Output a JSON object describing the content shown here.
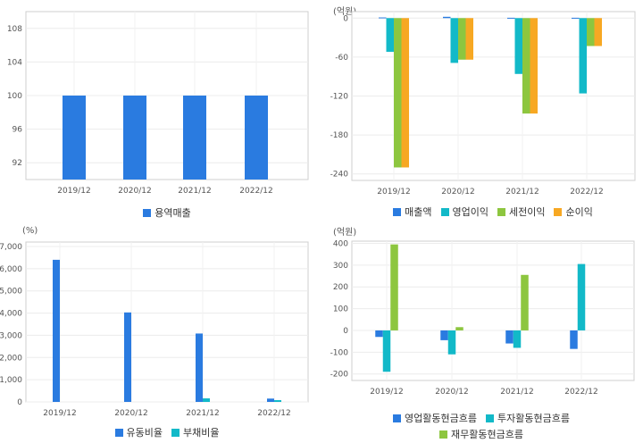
{
  "chart_data": [
    {
      "type": "bar",
      "unit": "",
      "categories": [
        "2019/12",
        "2020/12",
        "2021/12",
        "2022/12"
      ],
      "ylim": [
        90,
        110
      ],
      "yticks": [
        92,
        96,
        100,
        104,
        108
      ],
      "tick_labels": [
        "92",
        "96",
        "100",
        "104",
        "108"
      ],
      "grid": true,
      "legend": "bottom",
      "series": [
        {
          "name": "용역매출",
          "color": "#2a7be0",
          "values": [
            100,
            100,
            100,
            100
          ]
        }
      ]
    },
    {
      "type": "bar",
      "unit": "(억원)",
      "categories": [
        "2019/12",
        "2020/12",
        "2021/12",
        "2022/12"
      ],
      "ylim": [
        -250,
        10
      ],
      "yticks": [
        -240,
        -180,
        -120,
        -60,
        0
      ],
      "tick_labels": [
        "-240",
        "-180",
        "-120",
        "-60",
        "0"
      ],
      "grid": true,
      "legend": "bottom",
      "series": [
        {
          "name": "매출액",
          "color": "#2a7be0",
          "values": [
            1,
            2,
            0.5,
            0.5
          ]
        },
        {
          "name": "영업이익",
          "color": "#12b9c8",
          "values": [
            -52,
            -69,
            -86,
            -116
          ]
        },
        {
          "name": "세전이익",
          "color": "#8dc63f",
          "values": [
            -230,
            -64,
            -147,
            -43
          ]
        },
        {
          "name": "순이익",
          "color": "#f7a823",
          "values": [
            -230,
            -64,
            -147,
            -43
          ]
        }
      ]
    },
    {
      "type": "bar",
      "unit": "(%)",
      "categories": [
        "2019/12",
        "2020/12",
        "2021/12",
        "2022/12"
      ],
      "ylim": [
        0,
        7200
      ],
      "yticks": [
        0,
        1000,
        2000,
        3000,
        4000,
        5000,
        6000,
        7000
      ],
      "tick_labels": [
        "0",
        "1,000",
        "2,000",
        "3,000",
        "4,000",
        "5,000",
        "6,000",
        "7,000"
      ],
      "grid": true,
      "legend": "bottom",
      "series": [
        {
          "name": "유동비율",
          "color": "#2a7be0",
          "values": [
            6400,
            4030,
            3080,
            150
          ]
        },
        {
          "name": "부채비율",
          "color": "#12b9c8",
          "values": [
            0,
            0,
            160,
            80
          ]
        }
      ]
    },
    {
      "type": "bar",
      "unit": "(억원)",
      "categories": [
        "2019/12",
        "2020/12",
        "2021/12",
        "2022/12"
      ],
      "ylim": [
        -230,
        410
      ],
      "yticks": [
        -200,
        -100,
        0,
        100,
        200,
        300,
        400
      ],
      "tick_labels": [
        "-200",
        "-100",
        "0",
        "100",
        "200",
        "300",
        "400"
      ],
      "grid": true,
      "legend": "bottom",
      "series": [
        {
          "name": "영업활동현금흐름",
          "color": "#2a7be0",
          "values": [
            -30,
            -45,
            -60,
            -85
          ]
        },
        {
          "name": "투자활동현금흐름",
          "color": "#12b9c8",
          "values": [
            -190,
            -110,
            -80,
            305
          ]
        },
        {
          "name": "재무활동현금흐름",
          "color": "#8dc63f",
          "values": [
            395,
            15,
            255,
            0
          ]
        }
      ]
    }
  ]
}
